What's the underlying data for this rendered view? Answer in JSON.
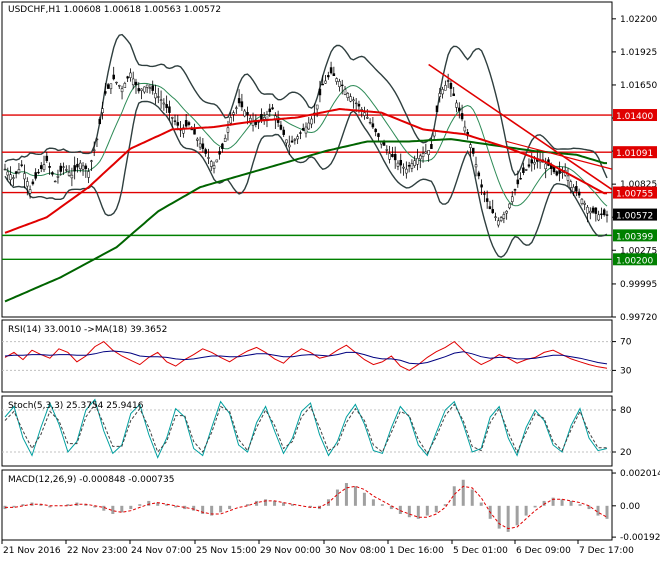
{
  "chart_data": [
    {
      "type": "candlestick",
      "panel": "price",
      "title": "USDCHF,H1  1.00608 1.00618 1.00563 1.00572",
      "y_ticks": [
        "1.02200",
        "1.01925",
        "1.01650",
        "1.01375",
        "1.01100",
        "1.00825",
        "1.00550",
        "1.00275",
        "0.99995",
        "0.99720"
      ],
      "ylim": [
        0.9972,
        1.0234
      ],
      "levels": [
        {
          "value": 1.014,
          "label": "1.01400",
          "color": "#e00000"
        },
        {
          "value": 1.01091,
          "label": "1.01091",
          "color": "#e00000"
        },
        {
          "value": 1.00755,
          "label": "1.00755",
          "color": "#e00000"
        },
        {
          "value": 1.00399,
          "label": "1.00399",
          "color": "#008000"
        },
        {
          "value": 1.002,
          "label": "1.00200",
          "color": "#008000"
        }
      ],
      "current_price": "1.00572",
      "series": [
        {
          "name": "price",
          "kind": "candles",
          "points": [
            [
              0,
              1.0095
            ],
            [
              3,
              1.0088
            ],
            [
              6,
              1.0098
            ],
            [
              9,
              1.0078
            ],
            [
              12,
              1.0092
            ],
            [
              15,
              1.0102
            ],
            [
              18,
              1.0085
            ],
            [
              21,
              1.0097
            ],
            [
              24,
              1.009
            ],
            [
              27,
              1.01
            ],
            [
              30,
              1.0093
            ],
            [
              33,
              1.012
            ],
            [
              36,
              1.0158
            ],
            [
              39,
              1.017
            ],
            [
              42,
              1.0162
            ],
            [
              45,
              1.0175
            ],
            [
              48,
              1.016
            ],
            [
              51,
              1.0165
            ],
            [
              54,
              1.0158
            ],
            [
              57,
              1.015
            ],
            [
              60,
              1.0138
            ],
            [
              63,
              1.0128
            ],
            [
              66,
              1.0132
            ],
            [
              69,
              1.012
            ],
            [
              72,
              1.0108
            ],
            [
              75,
              1.0098
            ],
            [
              78,
              1.0112
            ],
            [
              81,
              1.0138
            ],
            [
              84,
              1.015
            ],
            [
              87,
              1.014
            ],
            [
              90,
              1.0132
            ],
            [
              93,
              1.0138
            ],
            [
              96,
              1.0145
            ],
            [
              99,
              1.0128
            ],
            [
              102,
              1.0115
            ],
            [
              105,
              1.0122
            ],
            [
              108,
              1.013
            ],
            [
              111,
              1.014
            ],
            [
              114,
              1.0165
            ],
            [
              117,
              1.0175
            ],
            [
              120,
              1.0168
            ],
            [
              123,
              1.0158
            ],
            [
              126,
              1.015
            ],
            [
              129,
              1.0142
            ],
            [
              132,
              1.013
            ],
            [
              135,
              1.0118
            ],
            [
              138,
              1.0108
            ],
            [
              141,
              1.01
            ],
            [
              144,
              1.0095
            ],
            [
              147,
              1.0102
            ],
            [
              150,
              1.0108
            ],
            [
              153,
              1.0112
            ],
            [
              156,
              1.0158
            ],
            [
              159,
              1.0168
            ],
            [
              162,
              1.015
            ],
            [
              165,
              1.013
            ],
            [
              168,
              1.0108
            ],
            [
              171,
              1.008
            ],
            [
              174,
              1.0062
            ],
            [
              177,
              1.0052
            ],
            [
              180,
              1.006
            ],
            [
              183,
              1.0078
            ],
            [
              186,
              1.0092
            ],
            [
              189,
              1.01
            ],
            [
              192,
              1.0102
            ],
            [
              195,
              1.0098
            ],
            [
              198,
              1.009
            ],
            [
              201,
              1.0094
            ],
            [
              204,
              1.008
            ],
            [
              207,
              1.007
            ],
            [
              210,
              1.006
            ],
            [
              213,
              1.0057
            ]
          ]
        },
        {
          "name": "MA long",
          "color": "#006400",
          "points": [
            [
              0,
              0.9985
            ],
            [
              20,
              1.0005
            ],
            [
              40,
              1.003
            ],
            [
              55,
              1.006
            ],
            [
              70,
              1.008
            ],
            [
              85,
              1.009
            ],
            [
              100,
              1.01
            ],
            [
              115,
              1.011
            ],
            [
              130,
              1.0118
            ],
            [
              145,
              1.0118
            ],
            [
              160,
              1.012
            ],
            [
              175,
              1.0115
            ],
            [
              190,
              1.011
            ],
            [
              205,
              1.0107
            ],
            [
              215,
              1.01
            ]
          ]
        },
        {
          "name": "MA medium",
          "color": "#e00000",
          "points": [
            [
              0,
              1.0042
            ],
            [
              15,
              1.0055
            ],
            [
              30,
              1.008
            ],
            [
              45,
              1.0112
            ],
            [
              60,
              1.0128
            ],
            [
              75,
              1.013
            ],
            [
              90,
              1.0135
            ],
            [
              105,
              1.0138
            ],
            [
              120,
              1.0145
            ],
            [
              135,
              1.0142
            ],
            [
              150,
              1.0128
            ],
            [
              165,
              1.0124
            ],
            [
              180,
              1.0113
            ],
            [
              195,
              1.01
            ],
            [
              215,
              1.0075
            ]
          ]
        }
      ]
    },
    {
      "type": "line",
      "panel": "rsi",
      "title": "RSI(14) 33.0010  ->MA(18) 39.3652",
      "y_ticks": [
        "70",
        "30"
      ],
      "ylim": [
        0,
        100
      ],
      "series": [
        {
          "name": "RSI",
          "color": "#e00000",
          "values": [
            48,
            55,
            45,
            58,
            52,
            47,
            60,
            55,
            42,
            50,
            63,
            70,
            58,
            50,
            44,
            38,
            48,
            55,
            42,
            36,
            45,
            52,
            60,
            55,
            48,
            42,
            50,
            57,
            62,
            55,
            46,
            40,
            52,
            60,
            55,
            47,
            50,
            58,
            65,
            55,
            45,
            38,
            42,
            50,
            36,
            30,
            38,
            48,
            56,
            62,
            70,
            58,
            46,
            38,
            44,
            52,
            47,
            40,
            45,
            48,
            55,
            58,
            52,
            46,
            42,
            38,
            35,
            33
          ]
        },
        {
          "name": "MA",
          "color": "#000080",
          "values": [
            50,
            51,
            51,
            52,
            52,
            51,
            52,
            52,
            51,
            51,
            53,
            56,
            57,
            56,
            54,
            50,
            49,
            49,
            48,
            46,
            45,
            46,
            48,
            50,
            50,
            49,
            49,
            51,
            53,
            53,
            51,
            49,
            49,
            51,
            52,
            51,
            50,
            52,
            55,
            55,
            52,
            48,
            46,
            46,
            44,
            40,
            39,
            41,
            45,
            49,
            54,
            56,
            53,
            49,
            47,
            48,
            48,
            46,
            46,
            47,
            49,
            51,
            51,
            49,
            47,
            44,
            41,
            39
          ]
        }
      ]
    },
    {
      "type": "line",
      "panel": "stoch",
      "title": "Stoch(5,3,3) 25.3754 25.9416",
      "y_ticks": [
        "80",
        "20"
      ],
      "ylim": [
        0,
        100
      ],
      "series": [
        {
          "name": "%K",
          "color": "#00a0a0",
          "values": [
            70,
            85,
            40,
            15,
            55,
            90,
            60,
            20,
            35,
            80,
            95,
            50,
            18,
            30,
            75,
            88,
            45,
            12,
            40,
            82,
            70,
            25,
            15,
            55,
            92,
            75,
            30,
            20,
            62,
            85,
            50,
            18,
            40,
            78,
            90,
            45,
            15,
            35,
            70,
            88,
            60,
            22,
            18,
            55,
            85,
            70,
            30,
            15,
            48,
            80,
            92,
            60,
            20,
            25,
            70,
            85,
            40,
            15,
            55,
            80,
            65,
            30,
            20,
            58,
            82,
            40,
            22,
            25
          ]
        },
        {
          "name": "%D",
          "color": "#404040",
          "values": [
            65,
            78,
            50,
            25,
            45,
            78,
            65,
            32,
            32,
            70,
            88,
            60,
            28,
            28,
            65,
            82,
            55,
            20,
            35,
            72,
            72,
            35,
            20,
            48,
            85,
            78,
            38,
            22,
            55,
            80,
            58,
            25,
            35,
            70,
            85,
            55,
            22,
            30,
            62,
            82,
            65,
            30,
            20,
            48,
            78,
            72,
            38,
            18,
            42,
            72,
            88,
            65,
            28,
            22,
            62,
            82,
            48,
            20,
            48,
            75,
            68,
            35,
            22,
            52,
            78,
            48,
            26,
            26
          ]
        }
      ]
    },
    {
      "type": "bar",
      "panel": "macd",
      "title": "MACD(12,26,9) -0.000848 -0.000735",
      "y_ticks": [
        "0.002014",
        "0.00",
        "-0.001923"
      ],
      "ylim": [
        -0.0021,
        0.0022
      ],
      "series": [
        {
          "name": "histogram",
          "color": "#a0a0a0",
          "values": [
            -0.0002,
            -0.0001,
            0.0001,
            0.0002,
            0.0001,
            -0.0001,
            0.0,
            0.0001,
            0.0002,
            0.0001,
            -0.0001,
            -0.0003,
            -0.0005,
            -0.0004,
            -0.0002,
            0.0001,
            0.0003,
            0.0002,
            0.0001,
            -0.0001,
            -0.0002,
            -0.0003,
            -0.0005,
            -0.0006,
            -0.0004,
            -0.0002,
            0.0,
            0.0001,
            0.0003,
            0.0004,
            0.0003,
            0.0002,
            0.0001,
            0.0,
            -0.0001,
            -0.0002,
            0.0004,
            0.001,
            0.0014,
            0.0012,
            0.0008,
            0.0004,
            0.0001,
            -0.0002,
            -0.0005,
            -0.0007,
            -0.0008,
            -0.0006,
            -0.0004,
            0.0001,
            0.0012,
            0.0016,
            0.001,
            0.0002,
            -0.0008,
            -0.0014,
            -0.0016,
            -0.0012,
            -0.0006,
            -0.0001,
            0.0003,
            0.0005,
            0.0004,
            0.0003,
            0.0001,
            -0.0002,
            -0.0006,
            -0.0008
          ]
        },
        {
          "name": "signal",
          "color": "#e00000",
          "values": [
            -0.0001,
            -0.0001,
            0.0,
            0.0001,
            0.0001,
            0.0,
            0.0,
            0.0,
            0.0001,
            0.0001,
            0.0,
            -0.0001,
            -0.0003,
            -0.0004,
            -0.0003,
            -0.0001,
            0.0001,
            0.0002,
            0.0001,
            0.0,
            -0.0001,
            -0.0002,
            -0.0004,
            -0.0005,
            -0.0005,
            -0.0003,
            -0.0001,
            0.0,
            0.0002,
            0.0003,
            0.0003,
            0.0002,
            0.0001,
            0.0,
            -0.0001,
            -0.0001,
            0.0002,
            0.0007,
            0.0011,
            0.0012,
            0.001,
            0.0006,
            0.0003,
            0.0,
            -0.0003,
            -0.0005,
            -0.0007,
            -0.0007,
            -0.0005,
            -0.0001,
            0.0007,
            0.0012,
            0.0011,
            0.0005,
            -0.0004,
            -0.0011,
            -0.0014,
            -0.0013,
            -0.0008,
            -0.0003,
            0.0001,
            0.0004,
            0.0004,
            0.0003,
            0.0002,
            0.0,
            -0.0004,
            -0.0007
          ]
        }
      ]
    }
  ],
  "x_labels": [
    "21 Nov 2016",
    "22 Nov 23:00",
    "24 Nov 07:00",
    "25 Nov 15:00",
    "29 Nov 00:00",
    "30 Nov 08:00",
    "1 Dec 16:00",
    "5 Dec 01:00",
    "6 Dec 09:00",
    "7 Dec 17:00"
  ],
  "colors": {
    "support": "#008000",
    "resistance": "#e00000",
    "band": "#2f3f3f"
  }
}
